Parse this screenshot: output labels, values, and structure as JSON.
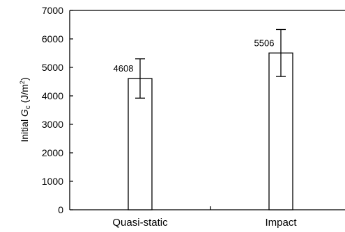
{
  "chart_data": {
    "type": "bar",
    "categories": [
      "Quasi-static",
      "Impact"
    ],
    "values": [
      4608,
      5506
    ],
    "error_low": [
      3920,
      4680
    ],
    "error_high": [
      5300,
      6330
    ],
    "data_labels": [
      "4608",
      "5506"
    ],
    "ylabel": {
      "prefix": "Initial ",
      "symbol": "G",
      "subscript": "c",
      "units": " (J/m",
      "sup": "2",
      "close": ")"
    },
    "ylim": [
      0,
      7000
    ],
    "yticks": [
      0,
      1000,
      2000,
      3000,
      4000,
      5000,
      6000,
      7000
    ],
    "grid": false,
    "colors": {
      "bar_fill": "#ffffff",
      "stroke": "#000000"
    }
  }
}
